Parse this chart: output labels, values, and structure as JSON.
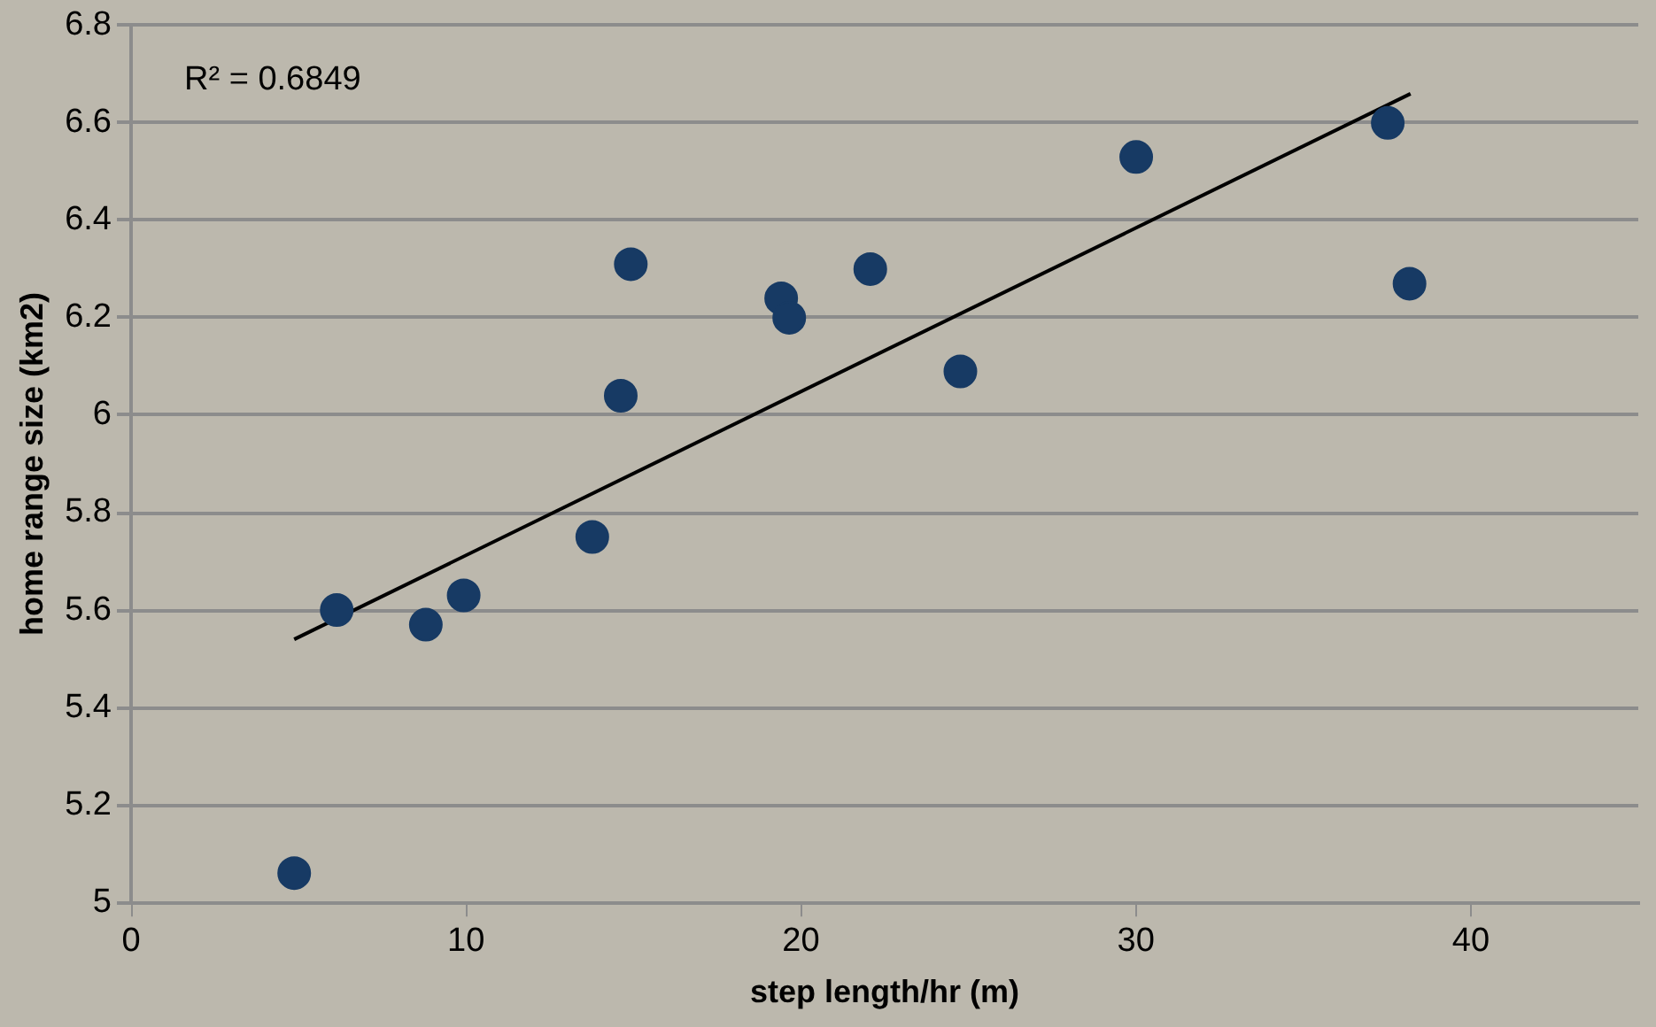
{
  "chart_data": {
    "type": "scatter",
    "xlabel": "step length/hr (m)",
    "ylabel": "home range size (km2)",
    "annotations": [
      "R² = 0.6849"
    ],
    "xlim": [
      0,
      45
    ],
    "xticks": [
      0,
      10,
      20,
      30,
      40
    ],
    "ylim": [
      5,
      6.8
    ],
    "yticks": [
      5,
      5.2,
      5.4,
      5.6,
      5.8,
      6,
      6.2,
      6.4,
      6.6,
      6.8
    ],
    "grid": "y",
    "legend": false,
    "marker": "circle",
    "series": [
      {
        "type": "scatter",
        "color": "#173a64",
        "x": [
          4.87,
          6.14,
          8.8,
          9.93,
          13.77,
          14.62,
          14.92,
          19.41,
          19.65,
          22.07,
          24.76,
          30.01,
          37.52,
          38.17
        ],
        "values": [
          5.06,
          5.6,
          5.57,
          5.63,
          5.75,
          6.04,
          6.31,
          6.24,
          6.2,
          6.3,
          6.09,
          6.53,
          6.6,
          6.27
        ]
      },
      {
        "type": "line",
        "color": "#000000",
        "marker": "none",
        "line_style": "solid",
        "x": [
          4.87,
          38.2
        ],
        "values": [
          5.54,
          6.66
        ]
      }
    ]
  }
}
